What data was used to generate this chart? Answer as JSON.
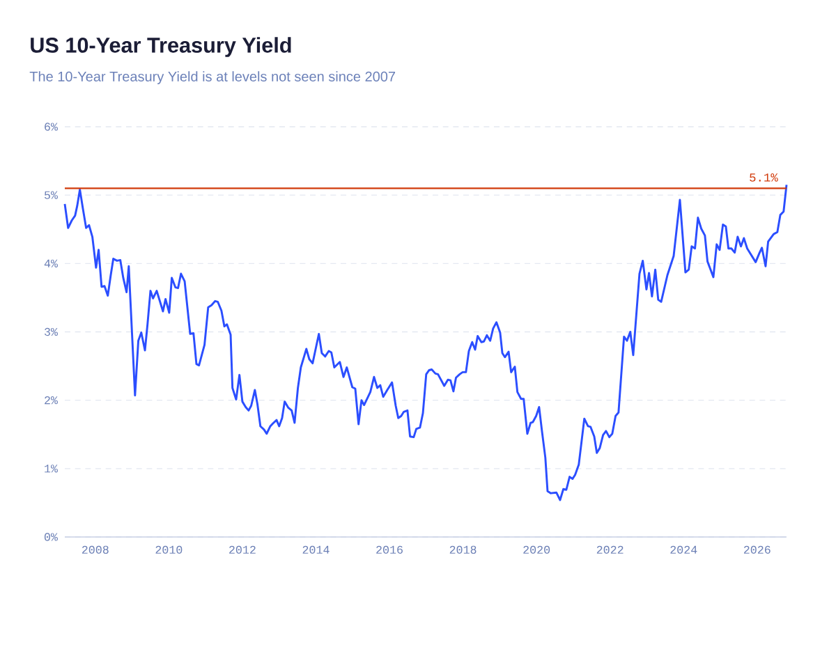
{
  "chart_data": {
    "type": "line",
    "title": "US 10-Year Treasury Yield",
    "subtitle": "The 10-Year Treasury Yield is at levels not seen since 2007",
    "x": [
      2007.17,
      2007.26,
      2007.36,
      2007.45,
      2007.51,
      2007.58,
      2007.66,
      2007.75,
      2007.83,
      2007.92,
      2008.02,
      2008.09,
      2008.17,
      2008.25,
      2008.34,
      2008.42,
      2008.49,
      2008.59,
      2008.68,
      2008.76,
      2008.85,
      2008.91,
      2009.08,
      2009.17,
      2009.25,
      2009.35,
      2009.42,
      2009.5,
      2009.57,
      2009.67,
      2009.84,
      2009.91,
      2010.01,
      2010.08,
      2010.18,
      2010.25,
      2010.33,
      2010.43,
      2010.58,
      2010.67,
      2010.75,
      2010.82,
      2010.97,
      2011.07,
      2011.16,
      2011.26,
      2011.33,
      2011.43,
      2011.51,
      2011.58,
      2011.68,
      2011.73,
      2011.83,
      2011.92,
      2012.0,
      2012.09,
      2012.17,
      2012.24,
      2012.34,
      2012.41,
      2012.49,
      2012.59,
      2012.66,
      2012.76,
      2012.83,
      2012.93,
      2013.0,
      2013.08,
      2013.15,
      2013.25,
      2013.34,
      2013.42,
      2013.51,
      2013.59,
      2013.74,
      2013.82,
      2013.91,
      2014.08,
      2014.16,
      2014.25,
      2014.35,
      2014.42,
      2014.5,
      2014.65,
      2014.75,
      2014.84,
      2014.99,
      2015.07,
      2015.16,
      2015.24,
      2015.31,
      2015.48,
      2015.58,
      2015.67,
      2015.75,
      2015.83,
      2015.94,
      2016.07,
      2016.17,
      2016.24,
      2016.32,
      2016.39,
      2016.49,
      2016.56,
      2016.66,
      2016.73,
      2016.83,
      2016.91,
      2017.0,
      2017.08,
      2017.15,
      2017.25,
      2017.32,
      2017.49,
      2017.59,
      2017.66,
      2017.74,
      2017.81,
      2017.91,
      2017.99,
      2018.08,
      2018.16,
      2018.25,
      2018.33,
      2018.4,
      2018.5,
      2018.57,
      2018.65,
      2018.74,
      2018.82,
      2018.91,
      2019.01,
      2019.07,
      2019.14,
      2019.24,
      2019.31,
      2019.41,
      2019.48,
      2019.58,
      2019.65,
      2019.75,
      2019.84,
      2019.9,
      2019.99,
      2020.07,
      2020.15,
      2020.24,
      2020.3,
      2020.39,
      2020.54,
      2020.64,
      2020.73,
      2020.81,
      2020.9,
      2020.98,
      2021.05,
      2021.15,
      2021.3,
      2021.4,
      2021.47,
      2021.57,
      2021.64,
      2021.72,
      2021.81,
      2021.89,
      2021.98,
      2022.06,
      2022.15,
      2022.23,
      2022.38,
      2022.46,
      2022.55,
      2022.63,
      2022.8,
      2022.89,
      2022.99,
      2023.06,
      2023.14,
      2023.23,
      2023.31,
      2023.39,
      2023.56,
      2023.73,
      2023.9,
      2024.05,
      2024.14,
      2024.22,
      2024.31,
      2024.39,
      2024.48,
      2024.58,
      2024.65,
      2024.81,
      2024.9,
      2024.98,
      2025.07,
      2025.15,
      2025.22,
      2025.3,
      2025.39,
      2025.47,
      2025.56,
      2025.64,
      2025.73,
      2025.96,
      2026.06,
      2026.13,
      2026.23,
      2026.3,
      2026.45,
      2026.55,
      2026.63,
      2026.72,
      2026.8
    ],
    "series": [
      {
        "color": "#2b4eff",
        "values": [
          4.87,
          4.52,
          4.63,
          4.7,
          4.85,
          5.08,
          4.81,
          4.52,
          4.56,
          4.39,
          3.94,
          4.2,
          3.66,
          3.67,
          3.53,
          3.83,
          4.07,
          4.04,
          4.05,
          3.79,
          3.58,
          3.96,
          2.07,
          2.87,
          2.99,
          2.73,
          3.11,
          3.6,
          3.49,
          3.6,
          3.3,
          3.48,
          3.28,
          3.79,
          3.65,
          3.64,
          3.85,
          3.74,
          2.97,
          2.98,
          2.53,
          2.51,
          2.81,
          3.36,
          3.39,
          3.45,
          3.44,
          3.31,
          3.08,
          3.11,
          2.96,
          2.18,
          2.01,
          2.37,
          1.98,
          1.9,
          1.85,
          1.92,
          2.15,
          1.94,
          1.62,
          1.57,
          1.51,
          1.62,
          1.66,
          1.71,
          1.62,
          1.74,
          1.98,
          1.89,
          1.85,
          1.67,
          2.18,
          2.48,
          2.75,
          2.6,
          2.54,
          2.97,
          2.69,
          2.64,
          2.72,
          2.7,
          2.48,
          2.56,
          2.34,
          2.48,
          2.19,
          2.17,
          1.65,
          2.0,
          1.93,
          2.12,
          2.34,
          2.18,
          2.22,
          2.05,
          2.15,
          2.26,
          1.92,
          1.74,
          1.77,
          1.83,
          1.85,
          1.47,
          1.46,
          1.58,
          1.6,
          1.81,
          2.38,
          2.44,
          2.45,
          2.39,
          2.38,
          2.21,
          2.3,
          2.29,
          2.13,
          2.33,
          2.38,
          2.41,
          2.41,
          2.72,
          2.85,
          2.74,
          2.94,
          2.85,
          2.86,
          2.95,
          2.87,
          3.05,
          3.14,
          2.99,
          2.69,
          2.63,
          2.71,
          2.41,
          2.49,
          2.12,
          2.02,
          2.02,
          1.51,
          1.67,
          1.68,
          1.77,
          1.9,
          1.54,
          1.16,
          0.67,
          0.64,
          0.65,
          0.54,
          0.7,
          0.69,
          0.88,
          0.85,
          0.91,
          1.06,
          1.73,
          1.62,
          1.61,
          1.47,
          1.23,
          1.3,
          1.49,
          1.55,
          1.46,
          1.51,
          1.77,
          1.82,
          2.93,
          2.87,
          3.0,
          2.66,
          3.85,
          4.04,
          3.62,
          3.86,
          3.52,
          3.91,
          3.47,
          3.44,
          3.83,
          4.11,
          4.93,
          3.87,
          3.91,
          4.25,
          4.22,
          4.67,
          4.51,
          4.41,
          4.03,
          3.8,
          4.28,
          4.2,
          4.57,
          4.54,
          4.22,
          4.22,
          4.16,
          4.39,
          4.25,
          4.37,
          4.22,
          4.02,
          4.15,
          4.23,
          3.96,
          4.32,
          4.43,
          4.46,
          4.71,
          4.76,
          5.15
        ]
      }
    ],
    "xlim": [
      2007.17,
      2026.8
    ],
    "xticks": [
      2008,
      2010,
      2012,
      2014,
      2016,
      2018,
      2020,
      2022,
      2024,
      2026
    ],
    "ylim": [
      0,
      6
    ],
    "yticks": [
      {
        "value": 0,
        "label": "0%"
      },
      {
        "value": 1,
        "label": "1%"
      },
      {
        "value": 2,
        "label": "2%"
      },
      {
        "value": 3,
        "label": "3%"
      },
      {
        "value": 4,
        "label": "4%"
      },
      {
        "value": 5,
        "label": "5%"
      },
      {
        "value": 6,
        "label": "6%"
      }
    ],
    "grid": "y",
    "ref_lines": [
      {
        "axis": "y",
        "value": 5.1,
        "label": "5.1%",
        "color": "#d13a0a"
      }
    ]
  }
}
